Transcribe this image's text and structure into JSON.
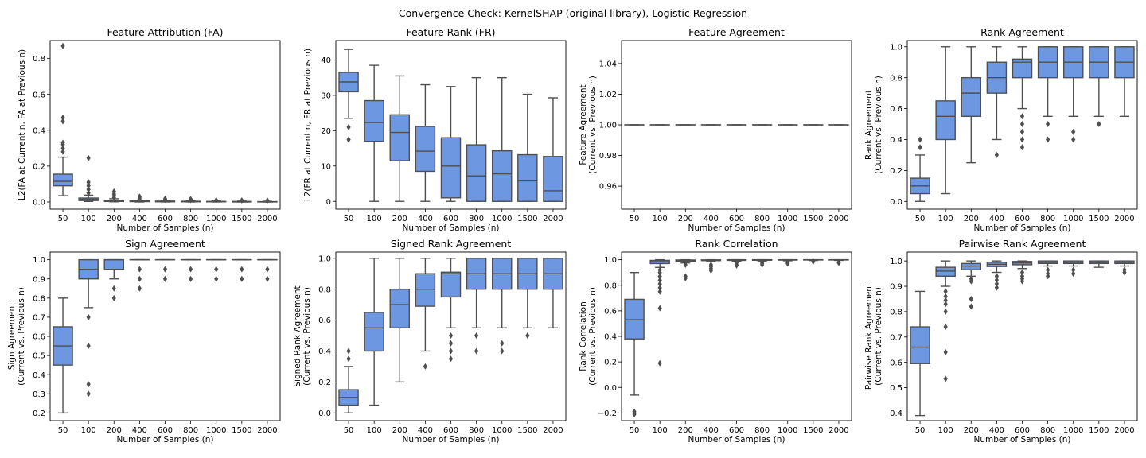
{
  "figure": {
    "suptitle": "Convergence Check: KernelSHAP (original library), Logistic Regression",
    "box_fill": "#6d97e0",
    "box_edge": "#4f4f4f"
  },
  "chart_data": [
    {
      "type": "box",
      "title": "Feature Attribution (FA)",
      "xlabel": "Number of Samples (n)",
      "ylabel": [
        "L2(FA at Current n, FA at Previous n)"
      ],
      "categories": [
        "50",
        "100",
        "200",
        "400",
        "600",
        "800",
        "1000",
        "1500",
        "2000"
      ],
      "ylim": [
        -0.04,
        0.9
      ],
      "yticks": [
        0.0,
        0.2,
        0.4,
        0.6,
        0.8
      ],
      "ytick_labels": [
        "0.0",
        "0.2",
        "0.4",
        "0.6",
        "0.8"
      ],
      "boxes": [
        {
          "q1": 0.09,
          "median": 0.115,
          "q3": 0.155,
          "wlo": 0.035,
          "whi": 0.25,
          "outliers": [
            0.28,
            0.3,
            0.32,
            0.33,
            0.45,
            0.47,
            0.87
          ]
        },
        {
          "q1": 0.008,
          "median": 0.015,
          "q3": 0.022,
          "wlo": 0.003,
          "whi": 0.038,
          "outliers": [
            0.05,
            0.07,
            0.09,
            0.11,
            0.245
          ]
        },
        {
          "q1": 0.003,
          "median": 0.006,
          "q3": 0.01,
          "wlo": 0.001,
          "whi": 0.018,
          "outliers": [
            0.025,
            0.035,
            0.045,
            0.058
          ]
        },
        {
          "q1": 0.002,
          "median": 0.004,
          "q3": 0.006,
          "wlo": 0.0,
          "whi": 0.01,
          "outliers": [
            0.015,
            0.022,
            0.03
          ]
        },
        {
          "q1": 0.001,
          "median": 0.003,
          "q3": 0.005,
          "wlo": 0.0,
          "whi": 0.008,
          "outliers": [
            0.012,
            0.018
          ]
        },
        {
          "q1": 0.001,
          "median": 0.002,
          "q3": 0.004,
          "wlo": 0.0,
          "whi": 0.007,
          "outliers": [
            0.011,
            0.016
          ]
        },
        {
          "q1": 0.001,
          "median": 0.002,
          "q3": 0.003,
          "wlo": 0.0,
          "whi": 0.006,
          "outliers": [
            0.01
          ]
        },
        {
          "q1": 0.0,
          "median": 0.001,
          "q3": 0.003,
          "wlo": 0.0,
          "whi": 0.005,
          "outliers": [
            0.009
          ]
        },
        {
          "q1": 0.0,
          "median": 0.001,
          "q3": 0.002,
          "wlo": 0.0,
          "whi": 0.004,
          "outliers": [
            0.008
          ]
        }
      ]
    },
    {
      "type": "box",
      "title": "Feature Rank (FR)",
      "xlabel": "Number of Samples (n)",
      "ylabel": [
        "L2(FR at Current n, FR at Previous n)"
      ],
      "categories": [
        "50",
        "100",
        "200",
        "400",
        "600",
        "800",
        "1000",
        "1500",
        "2000"
      ],
      "ylim": [
        -2.2,
        45.5
      ],
      "yticks": [
        0,
        10,
        20,
        30,
        40
      ],
      "ytick_labels": [
        "0",
        "10",
        "20",
        "30",
        "40"
      ],
      "boxes": [
        {
          "q1": 31,
          "median": 33.8,
          "q3": 36.5,
          "wlo": 23.5,
          "whi": 43,
          "outliers": [
            21,
            17.5
          ]
        },
        {
          "q1": 17,
          "median": 22.3,
          "q3": 28.5,
          "wlo": 0,
          "whi": 38.5,
          "outliers": []
        },
        {
          "q1": 11.5,
          "median": 19.5,
          "q3": 24.5,
          "wlo": 0,
          "whi": 35.5,
          "outliers": []
        },
        {
          "q1": 8.5,
          "median": 14.2,
          "q3": 21.2,
          "wlo": 0,
          "whi": 33,
          "outliers": []
        },
        {
          "q1": 1,
          "median": 10,
          "q3": 18,
          "wlo": 0,
          "whi": 32.5,
          "outliers": []
        },
        {
          "q1": 0,
          "median": 7.2,
          "q3": 16,
          "wlo": 0,
          "whi": 35,
          "outliers": []
        },
        {
          "q1": 0,
          "median": 7.8,
          "q3": 14.3,
          "wlo": 0,
          "whi": 35,
          "outliers": []
        },
        {
          "q1": 0,
          "median": 5.8,
          "q3": 13.2,
          "wlo": 0,
          "whi": 30.3,
          "outliers": []
        },
        {
          "q1": 0,
          "median": 3,
          "q3": 12.7,
          "wlo": 0,
          "whi": 29.3,
          "outliers": []
        }
      ]
    },
    {
      "type": "box",
      "title": "Feature Agreement",
      "xlabel": "Number of Samples (n)",
      "ylabel": [
        "Feature Agreement",
        "(Current vs. Previous n)"
      ],
      "categories": [
        "50",
        "100",
        "200",
        "400",
        "600",
        "800",
        "1000",
        "1500",
        "2000"
      ],
      "ylim": [
        0.945,
        1.055
      ],
      "yticks": [
        0.96,
        0.98,
        1.0,
        1.02,
        1.04
      ],
      "ytick_labels": [
        "0.96",
        "0.98",
        "1.00",
        "1.02",
        "1.04"
      ],
      "boxes": [
        {
          "q1": 1,
          "median": 1,
          "q3": 1,
          "wlo": 1,
          "whi": 1,
          "outliers": []
        },
        {
          "q1": 1,
          "median": 1,
          "q3": 1,
          "wlo": 1,
          "whi": 1,
          "outliers": []
        },
        {
          "q1": 1,
          "median": 1,
          "q3": 1,
          "wlo": 1,
          "whi": 1,
          "outliers": []
        },
        {
          "q1": 1,
          "median": 1,
          "q3": 1,
          "wlo": 1,
          "whi": 1,
          "outliers": []
        },
        {
          "q1": 1,
          "median": 1,
          "q3": 1,
          "wlo": 1,
          "whi": 1,
          "outliers": []
        },
        {
          "q1": 1,
          "median": 1,
          "q3": 1,
          "wlo": 1,
          "whi": 1,
          "outliers": []
        },
        {
          "q1": 1,
          "median": 1,
          "q3": 1,
          "wlo": 1,
          "whi": 1,
          "outliers": []
        },
        {
          "q1": 1,
          "median": 1,
          "q3": 1,
          "wlo": 1,
          "whi": 1,
          "outliers": []
        },
        {
          "q1": 1,
          "median": 1,
          "q3": 1,
          "wlo": 1,
          "whi": 1,
          "outliers": []
        }
      ]
    },
    {
      "type": "box",
      "title": "Rank Agreement",
      "xlabel": "Number of Samples (n)",
      "ylabel": [
        "Rank Agreement",
        "(Current vs. Previous n)"
      ],
      "categories": [
        "50",
        "100",
        "200",
        "400",
        "600",
        "800",
        "1000",
        "1500",
        "2000"
      ],
      "ylim": [
        -0.05,
        1.04
      ],
      "yticks": [
        0.0,
        0.2,
        0.4,
        0.6,
        0.8,
        1.0
      ],
      "ytick_labels": [
        "0.0",
        "0.2",
        "0.4",
        "0.6",
        "0.8",
        "1.0"
      ],
      "boxes": [
        {
          "q1": 0.05,
          "median": 0.1,
          "q3": 0.15,
          "wlo": 0.0,
          "whi": 0.3,
          "outliers": [
            0.35,
            0.4
          ]
        },
        {
          "q1": 0.4,
          "median": 0.55,
          "q3": 0.65,
          "wlo": 0.05,
          "whi": 1.0,
          "outliers": []
        },
        {
          "q1": 0.55,
          "median": 0.7,
          "q3": 0.8,
          "wlo": 0.25,
          "whi": 1.0,
          "outliers": []
        },
        {
          "q1": 0.7,
          "median": 0.8,
          "q3": 0.9,
          "wlo": 0.4,
          "whi": 1.0,
          "outliers": [
            0.3
          ]
        },
        {
          "q1": 0.8,
          "median": 0.9,
          "q3": 0.92,
          "wlo": 0.6,
          "whi": 1.0,
          "outliers": [
            0.55,
            0.5,
            0.45,
            0.4,
            0.35
          ]
        },
        {
          "q1": 0.8,
          "median": 0.9,
          "q3": 1.0,
          "wlo": 0.55,
          "whi": 1.0,
          "outliers": [
            0.5,
            0.4
          ]
        },
        {
          "q1": 0.8,
          "median": 0.9,
          "q3": 1.0,
          "wlo": 0.55,
          "whi": 1.0,
          "outliers": [
            0.45,
            0.4
          ]
        },
        {
          "q1": 0.8,
          "median": 0.9,
          "q3": 1.0,
          "wlo": 0.55,
          "whi": 1.0,
          "outliers": [
            0.5
          ]
        },
        {
          "q1": 0.8,
          "median": 0.9,
          "q3": 1.0,
          "wlo": 0.55,
          "whi": 1.0,
          "outliers": []
        }
      ]
    },
    {
      "type": "box",
      "title": "Sign Agreement",
      "xlabel": "Number of Samples (n)",
      "ylabel": [
        "Sign Agreement",
        "(Current vs. Previous n)"
      ],
      "categories": [
        "50",
        "100",
        "200",
        "400",
        "600",
        "800",
        "1000",
        "1500",
        "2000"
      ],
      "ylim": [
        0.16,
        1.04
      ],
      "yticks": [
        0.2,
        0.3,
        0.4,
        0.5,
        0.6,
        0.7,
        0.8,
        0.9,
        1.0
      ],
      "ytick_labels": [
        "0.2",
        "0.3",
        "0.4",
        "0.5",
        "0.6",
        "0.7",
        "0.8",
        "0.9",
        "1.0"
      ],
      "boxes": [
        {
          "q1": 0.45,
          "median": 0.55,
          "q3": 0.65,
          "wlo": 0.2,
          "whi": 0.8,
          "outliers": []
        },
        {
          "q1": 0.9,
          "median": 0.95,
          "q3": 1.0,
          "wlo": 0.75,
          "whi": 1.0,
          "outliers": [
            0.7,
            0.55,
            0.35,
            0.3
          ]
        },
        {
          "q1": 0.95,
          "median": 1.0,
          "q3": 1.0,
          "wlo": 0.9,
          "whi": 1.0,
          "outliers": [
            0.85,
            0.8
          ]
        },
        {
          "q1": 1.0,
          "median": 1.0,
          "q3": 1.0,
          "wlo": 1.0,
          "whi": 1.0,
          "outliers": [
            0.95,
            0.9,
            0.85
          ]
        },
        {
          "q1": 1.0,
          "median": 1.0,
          "q3": 1.0,
          "wlo": 1.0,
          "whi": 1.0,
          "outliers": [
            0.95,
            0.9
          ]
        },
        {
          "q1": 1.0,
          "median": 1.0,
          "q3": 1.0,
          "wlo": 1.0,
          "whi": 1.0,
          "outliers": [
            0.95,
            0.9
          ]
        },
        {
          "q1": 1.0,
          "median": 1.0,
          "q3": 1.0,
          "wlo": 1.0,
          "whi": 1.0,
          "outliers": [
            0.95,
            0.9
          ]
        },
        {
          "q1": 1.0,
          "median": 1.0,
          "q3": 1.0,
          "wlo": 1.0,
          "whi": 1.0,
          "outliers": [
            0.95,
            0.9
          ]
        },
        {
          "q1": 1.0,
          "median": 1.0,
          "q3": 1.0,
          "wlo": 1.0,
          "whi": 1.0,
          "outliers": [
            0.95,
            0.9
          ]
        }
      ]
    },
    {
      "type": "box",
      "title": "Signed Rank Agreement",
      "xlabel": "Number of Samples (n)",
      "ylabel": [
        "Signed Rank Agreement",
        "(Current vs. Previous n)"
      ],
      "categories": [
        "50",
        "100",
        "200",
        "400",
        "600",
        "800",
        "1000",
        "1500",
        "2000"
      ],
      "ylim": [
        -0.05,
        1.04
      ],
      "yticks": [
        0.0,
        0.2,
        0.4,
        0.6,
        0.8,
        1.0
      ],
      "ytick_labels": [
        "0.0",
        "0.2",
        "0.4",
        "0.6",
        "0.8",
        "1.0"
      ],
      "boxes": [
        {
          "q1": 0.05,
          "median": 0.1,
          "q3": 0.15,
          "wlo": 0.0,
          "whi": 0.3,
          "outliers": [
            0.35,
            0.4
          ]
        },
        {
          "q1": 0.4,
          "median": 0.55,
          "q3": 0.65,
          "wlo": 0.05,
          "whi": 1.0,
          "outliers": []
        },
        {
          "q1": 0.55,
          "median": 0.7,
          "q3": 0.8,
          "wlo": 0.2,
          "whi": 1.0,
          "outliers": []
        },
        {
          "q1": 0.69,
          "median": 0.8,
          "q3": 0.9,
          "wlo": 0.4,
          "whi": 1.0,
          "outliers": [
            0.3
          ]
        },
        {
          "q1": 0.75,
          "median": 0.9,
          "q3": 0.91,
          "wlo": 0.55,
          "whi": 1.0,
          "outliers": [
            0.5,
            0.45,
            0.4,
            0.35
          ]
        },
        {
          "q1": 0.8,
          "median": 0.9,
          "q3": 1.0,
          "wlo": 0.55,
          "whi": 1.0,
          "outliers": [
            0.5,
            0.4
          ]
        },
        {
          "q1": 0.8,
          "median": 0.9,
          "q3": 1.0,
          "wlo": 0.55,
          "whi": 1.0,
          "outliers": [
            0.45,
            0.4
          ]
        },
        {
          "q1": 0.8,
          "median": 0.9,
          "q3": 1.0,
          "wlo": 0.55,
          "whi": 1.0,
          "outliers": [
            0.5
          ]
        },
        {
          "q1": 0.8,
          "median": 0.9,
          "q3": 1.0,
          "wlo": 0.55,
          "whi": 1.0,
          "outliers": []
        }
      ]
    },
    {
      "type": "box",
      "title": "Rank Correlation",
      "xlabel": "Number of Samples (n)",
      "ylabel": [
        "Rank Correlation",
        "(Current vs. Previous n)"
      ],
      "categories": [
        "50",
        "100",
        "200",
        "400",
        "600",
        "800",
        "1000",
        "1500",
        "2000"
      ],
      "ylim": [
        -0.26,
        1.06
      ],
      "yticks": [
        -0.2,
        0.0,
        0.2,
        0.4,
        0.6,
        0.8,
        1.0
      ],
      "ytick_labels": [
        "−0.2",
        "0.0",
        "0.2",
        "0.4",
        "0.6",
        "0.8",
        "1.0"
      ],
      "boxes": [
        {
          "q1": 0.38,
          "median": 0.53,
          "q3": 0.69,
          "wlo": -0.06,
          "whi": 0.9,
          "outliers": [
            -0.19,
            -0.21
          ]
        },
        {
          "q1": 0.97,
          "median": 0.985,
          "q3": 0.995,
          "wlo": 0.94,
          "whi": 1.0,
          "outliers": [
            0.92,
            0.9,
            0.87,
            0.84,
            0.81,
            0.78,
            0.75,
            0.62,
            0.19
          ]
        },
        {
          "q1": 0.988,
          "median": 0.993,
          "q3": 0.998,
          "wlo": 0.975,
          "whi": 1.0,
          "outliers": [
            0.96,
            0.87,
            0.855
          ]
        },
        {
          "q1": 0.993,
          "median": 0.996,
          "q3": 0.999,
          "wlo": 0.985,
          "whi": 1.0,
          "outliers": [
            0.96,
            0.945,
            0.93,
            0.915
          ]
        },
        {
          "q1": 0.995,
          "median": 0.998,
          "q3": 1.0,
          "wlo": 0.988,
          "whi": 1.0,
          "outliers": [
            0.975,
            0.96,
            0.955
          ]
        },
        {
          "q1": 0.996,
          "median": 0.998,
          "q3": 1.0,
          "wlo": 0.99,
          "whi": 1.0,
          "outliers": [
            0.98,
            0.97,
            0.96
          ]
        },
        {
          "q1": 0.997,
          "median": 0.999,
          "q3": 1.0,
          "wlo": 0.992,
          "whi": 1.0,
          "outliers": [
            0.98,
            0.97
          ]
        },
        {
          "q1": 0.998,
          "median": 0.999,
          "q3": 1.0,
          "wlo": 0.994,
          "whi": 1.0,
          "outliers": [
            0.985
          ]
        },
        {
          "q1": 0.998,
          "median": 0.999,
          "q3": 1.0,
          "wlo": 0.995,
          "whi": 1.0,
          "outliers": [
            0.98,
            0.975
          ]
        }
      ]
    },
    {
      "type": "box",
      "title": "Pairwise Rank Agreement",
      "xlabel": "Number of Samples (n)",
      "ylabel": [
        "Pairwise Rank Agreement",
        "(Current vs. Previous n)"
      ],
      "categories": [
        "50",
        "100",
        "200",
        "400",
        "600",
        "800",
        "1000",
        "1500",
        "2000"
      ],
      "ylim": [
        0.37,
        1.035
      ],
      "yticks": [
        0.4,
        0.5,
        0.6,
        0.7,
        0.8,
        0.9,
        1.0
      ],
      "ytick_labels": [
        "0.4",
        "0.5",
        "0.6",
        "0.7",
        "0.8",
        "0.9",
        "1.0"
      ],
      "boxes": [
        {
          "q1": 0.595,
          "median": 0.66,
          "q3": 0.74,
          "wlo": 0.39,
          "whi": 0.88,
          "outliers": []
        },
        {
          "q1": 0.94,
          "median": 0.96,
          "q3": 0.975,
          "wlo": 0.9,
          "whi": 1.0,
          "outliers": [
            0.88,
            0.86,
            0.845,
            0.83,
            0.8,
            0.74,
            0.64,
            0.535
          ]
        },
        {
          "q1": 0.965,
          "median": 0.98,
          "q3": 0.99,
          "wlo": 0.94,
          "whi": 1.0,
          "outliers": [
            0.93,
            0.92,
            0.85,
            0.82
          ]
        },
        {
          "q1": 0.978,
          "median": 0.987,
          "q3": 0.995,
          "wlo": 0.955,
          "whi": 1.0,
          "outliers": [
            0.94,
            0.925,
            0.91,
            0.895
          ]
        },
        {
          "q1": 0.985,
          "median": 0.992,
          "q3": 0.998,
          "wlo": 0.97,
          "whi": 1.0,
          "outliers": [
            0.955,
            0.94,
            0.93,
            0.92
          ]
        },
        {
          "q1": 0.99,
          "median": 0.995,
          "q3": 1.0,
          "wlo": 0.98,
          "whi": 1.0,
          "outliers": [
            0.965,
            0.95,
            0.94
          ]
        },
        {
          "q1": 0.99,
          "median": 0.995,
          "q3": 1.0,
          "wlo": 0.98,
          "whi": 1.0,
          "outliers": [
            0.965,
            0.95
          ]
        },
        {
          "q1": 0.99,
          "median": 0.995,
          "q3": 1.0,
          "wlo": 0.975,
          "whi": 1.0,
          "outliers": []
        },
        {
          "q1": 0.99,
          "median": 0.995,
          "q3": 1.0,
          "wlo": 0.98,
          "whi": 1.0,
          "outliers": [
            0.965,
            0.955
          ]
        }
      ]
    }
  ]
}
